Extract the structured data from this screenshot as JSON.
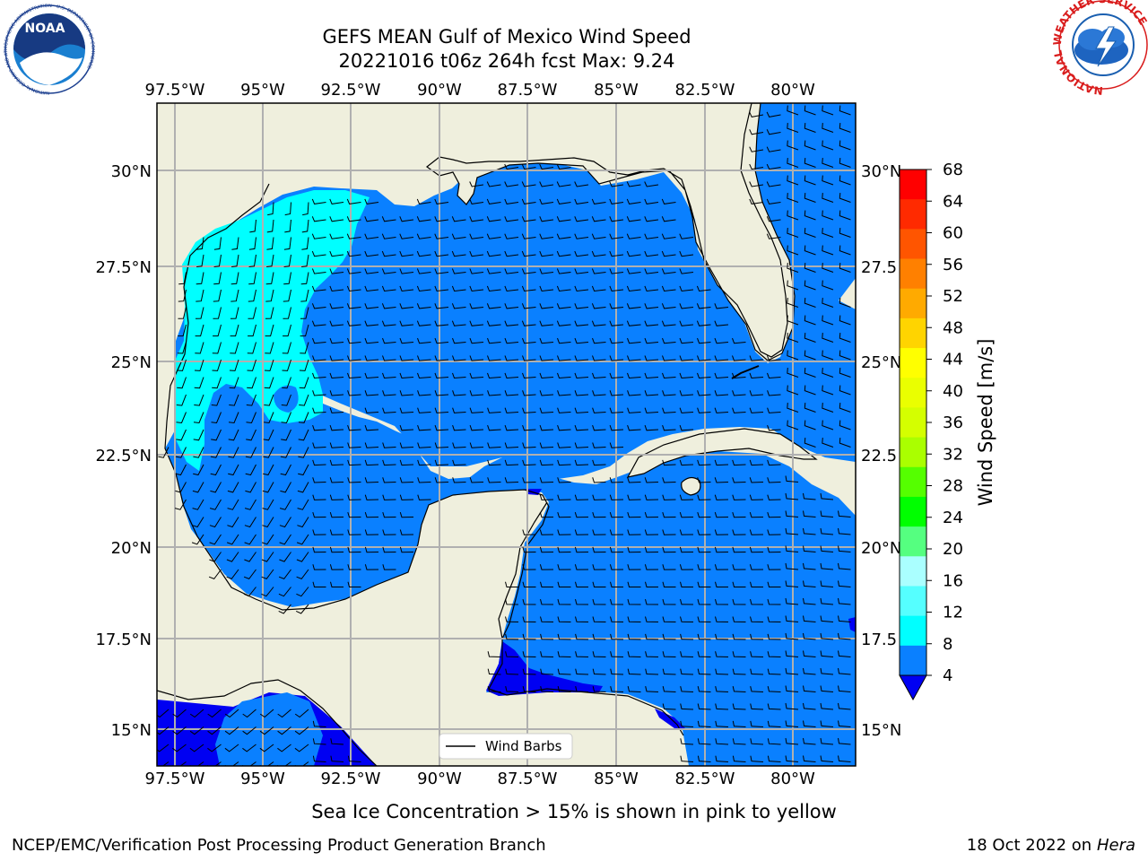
{
  "title": {
    "line1": "GEFS MEAN Gulf of Mexico Wind Speed",
    "line2": "20221016 t06z 264h fcst   Max: 9.24"
  },
  "logos": {
    "noaa_text": "NOAA",
    "noaa_ring_text": "NATIONAL OCEANIC AND ATMOSPHERIC ADMINISTRATION · U.S. DEPARTMENT OF COMMERCE",
    "nws_ring_text": "NATIONAL WEATHER SERVICE"
  },
  "map": {
    "lon_range": [
      -98.5,
      -78.7
    ],
    "lat_range": [
      14.0,
      31.8
    ],
    "lon_ticks": [
      "97.5°W",
      "95°W",
      "92.5°W",
      "90°W",
      "87.5°W",
      "85°W",
      "82.5°W",
      "80°W"
    ],
    "lat_ticks": [
      "30°N",
      "27.5°N",
      "25°N",
      "22.5°N",
      "20°N",
      "17.5°N",
      "15°N"
    ],
    "right_lat_ticks": [
      "30°N",
      "27.5",
      "25°N",
      "22.5",
      "20°N",
      "17.5",
      "15°N"
    ],
    "legend_label": "Wind Barbs",
    "colors": {
      "land": "#efefdd",
      "wind_4_8": "#0a80ff",
      "wind_8_12": "#00ffff",
      "wind_below_4": "#0000f2"
    }
  },
  "colorbar": {
    "label": "Wind Speed [m/s]",
    "ticks": [
      "68",
      "64",
      "60",
      "56",
      "52",
      "48",
      "44",
      "40",
      "36",
      "32",
      "28",
      "24",
      "20",
      "16",
      "12",
      "8",
      "4"
    ],
    "colors": [
      "#ff0000",
      "#ff2a00",
      "#ff5500",
      "#ff8000",
      "#ffaa00",
      "#ffd400",
      "#ffff00",
      "#eaff00",
      "#d4ff00",
      "#aaff00",
      "#55ff00",
      "#00ff00",
      "#55ff80",
      "#aaffff",
      "#55ffff",
      "#00ffff",
      "#0a80ff"
    ],
    "extend_color": "#0000f2"
  },
  "caption": "Sea Ice Concentration > 15% is shown in pink to yellow",
  "footer": {
    "left": "NCEP/EMC/Verification Post Processing Product Generation Branch",
    "right_date": "18 Oct 2022 on ",
    "right_host": "Hera"
  }
}
